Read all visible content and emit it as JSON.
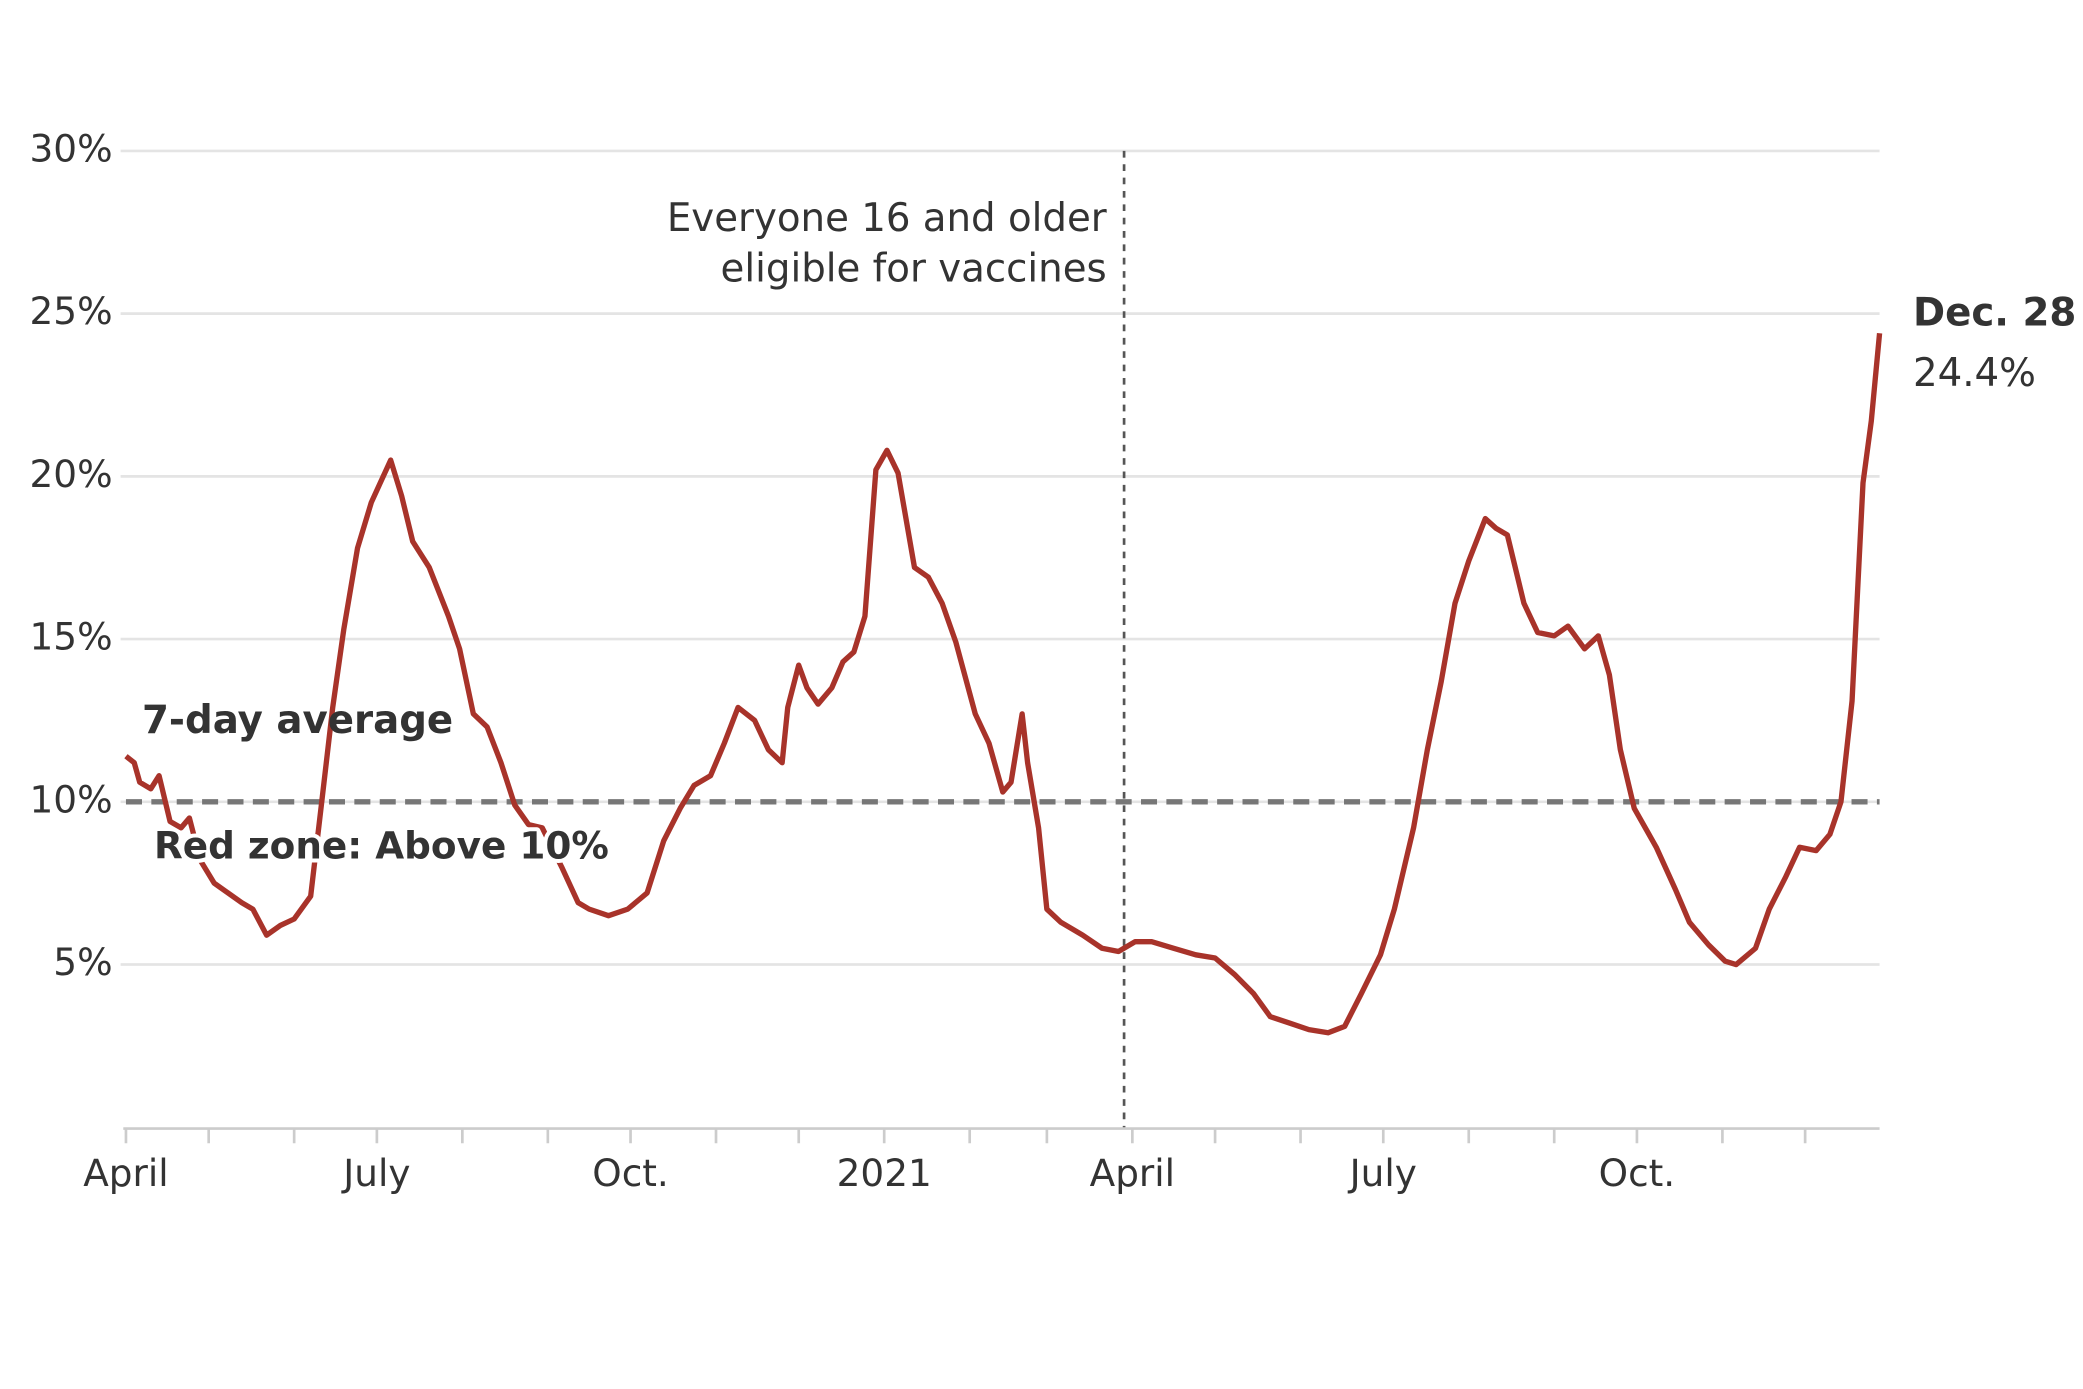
{
  "chart_data": {
    "type": "line",
    "xlim": [
      "2020-04-01",
      "2021-12-28"
    ],
    "ylim": [
      0,
      30
    ],
    "yticks": [
      {
        "value": 5,
        "label": "5%"
      },
      {
        "value": 10,
        "label": "10%"
      },
      {
        "value": 15,
        "label": "15%"
      },
      {
        "value": 20,
        "label": "20%"
      },
      {
        "value": 25,
        "label": "25%"
      },
      {
        "value": 30,
        "label": "30%"
      }
    ],
    "xticks": [
      {
        "value": "2020-04-01",
        "label": "April"
      },
      {
        "value": "2020-07-01",
        "label": "July"
      },
      {
        "value": "2020-10-01",
        "label": "Oct."
      },
      {
        "value": "2021-01-01",
        "label": "2021"
      },
      {
        "value": "2021-04-01",
        "label": "April"
      },
      {
        "value": "2021-07-01",
        "label": "July"
      },
      {
        "value": "2021-10-01",
        "label": "Oct."
      }
    ],
    "xminor_ticks": [
      "2020-04-01",
      "2020-05-01",
      "2020-06-01",
      "2020-07-01",
      "2020-08-01",
      "2020-09-01",
      "2020-10-01",
      "2020-11-01",
      "2020-12-01",
      "2021-01-01",
      "2021-02-01",
      "2021-03-01",
      "2021-04-01",
      "2021-05-01",
      "2021-06-01",
      "2021-07-01",
      "2021-08-01",
      "2021-09-01",
      "2021-10-01",
      "2021-11-01",
      "2021-12-01"
    ],
    "grid": true,
    "threshold": {
      "value": 10,
      "label": "Red zone: Above 10%",
      "color": "#777777"
    },
    "event": {
      "x": "2021-03-29",
      "label_lines": [
        "Everyone 16 and older",
        "eligible for vaccines"
      ]
    },
    "x": [
      "2020-04-01",
      "2020-04-04",
      "2020-04-06",
      "2020-04-10",
      "2020-04-13",
      "2020-04-15",
      "2020-04-17",
      "2020-04-21",
      "2020-04-24",
      "2020-04-28",
      "2020-05-03",
      "2020-05-08",
      "2020-05-13",
      "2020-05-17",
      "2020-05-22",
      "2020-05-27",
      "2020-06-01",
      "2020-06-07",
      "2020-06-11",
      "2020-06-15",
      "2020-06-19",
      "2020-06-24",
      "2020-06-29",
      "2020-07-06",
      "2020-07-10",
      "2020-07-14",
      "2020-07-20",
      "2020-07-27",
      "2020-07-31",
      "2020-08-05",
      "2020-08-10",
      "2020-08-15",
      "2020-08-20",
      "2020-08-25",
      "2020-08-30",
      "2020-09-06",
      "2020-09-12",
      "2020-09-16",
      "2020-09-23",
      "2020-09-30",
      "2020-10-07",
      "2020-10-13",
      "2020-10-19",
      "2020-10-24",
      "2020-10-30",
      "2020-11-04",
      "2020-11-09",
      "2020-11-15",
      "2020-11-20",
      "2020-11-25",
      "2020-11-27",
      "2020-12-01",
      "2020-12-04",
      "2020-12-08",
      "2020-12-13",
      "2020-12-17",
      "2020-12-21",
      "2020-12-25",
      "2020-12-29",
      "2021-01-02",
      "2021-01-06",
      "2021-01-12",
      "2021-01-17",
      "2021-01-22",
      "2021-01-27",
      "2021-02-03",
      "2021-02-08",
      "2021-02-13",
      "2021-02-16",
      "2021-02-20",
      "2021-02-22",
      "2021-02-26",
      "2021-03-01",
      "2021-03-06",
      "2021-03-14",
      "2021-03-21",
      "2021-03-27",
      "2021-04-02",
      "2021-04-08",
      "2021-04-16",
      "2021-04-24",
      "2021-05-01",
      "2021-05-08",
      "2021-05-15",
      "2021-05-21",
      "2021-05-28",
      "2021-06-04",
      "2021-06-11",
      "2021-06-17",
      "2021-06-23",
      "2021-06-30",
      "2021-07-05",
      "2021-07-12",
      "2021-07-17",
      "2021-07-22",
      "2021-07-27",
      "2021-08-01",
      "2021-08-07",
      "2021-08-11",
      "2021-08-15",
      "2021-08-21",
      "2021-08-26",
      "2021-09-01",
      "2021-09-06",
      "2021-09-12",
      "2021-09-17",
      "2021-09-21",
      "2021-09-25",
      "2021-09-30",
      "2021-10-08",
      "2021-10-15",
      "2021-10-20",
      "2021-10-27",
      "2021-11-02",
      "2021-11-06",
      "2021-11-13",
      "2021-11-18",
      "2021-11-24",
      "2021-11-29",
      "2021-12-05",
      "2021-12-10",
      "2021-12-14",
      "2021-12-18",
      "2021-12-22",
      "2021-12-25",
      "2021-12-28"
    ],
    "series": [
      {
        "name": "7-day average",
        "color": "#a8332a",
        "end_label": "Dec. 28",
        "end_value_label": "24.4%",
        "values": [
          11.4,
          11.2,
          10.6,
          10.4,
          10.8,
          10.1,
          9.4,
          9.2,
          9.5,
          8.2,
          7.5,
          7.2,
          6.9,
          6.7,
          5.9,
          6.2,
          6.4,
          7.1,
          10,
          12.9,
          15.3,
          17.8,
          19.2,
          20.5,
          19.4,
          18,
          17.2,
          15.7,
          14.7,
          12.7,
          12.3,
          11.2,
          9.9,
          9.3,
          9.2,
          8,
          6.9,
          6.7,
          6.5,
          6.7,
          7.2,
          8.8,
          9.8,
          10.5,
          10.8,
          11.8,
          12.9,
          12.5,
          11.6,
          11.2,
          12.9,
          14.2,
          13.5,
          13,
          13.5,
          14.3,
          14.6,
          15.7,
          20.2,
          20.8,
          20.1,
          17.2,
          16.9,
          16.1,
          14.9,
          12.7,
          11.8,
          10.3,
          10.6,
          12.7,
          11.2,
          9.2,
          6.7,
          6.3,
          5.9,
          5.5,
          5.4,
          5.7,
          5.7,
          5.5,
          5.3,
          5.2,
          4.7,
          4.1,
          3.4,
          3.2,
          3.0,
          2.9,
          3.1,
          4.1,
          5.3,
          6.7,
          9.2,
          11.6,
          13.7,
          16.1,
          17.4,
          18.7,
          18.4,
          18.2,
          16.1,
          15.2,
          15.1,
          15.4,
          14.7,
          15.1,
          13.9,
          11.6,
          9.8,
          8.6,
          7.3,
          6.3,
          5.6,
          5.1,
          5.0,
          5.5,
          6.7,
          7.7,
          8.6,
          8.5,
          9.0,
          10,
          13.1,
          19.8,
          21.7,
          24.4
        ]
      }
    ]
  }
}
